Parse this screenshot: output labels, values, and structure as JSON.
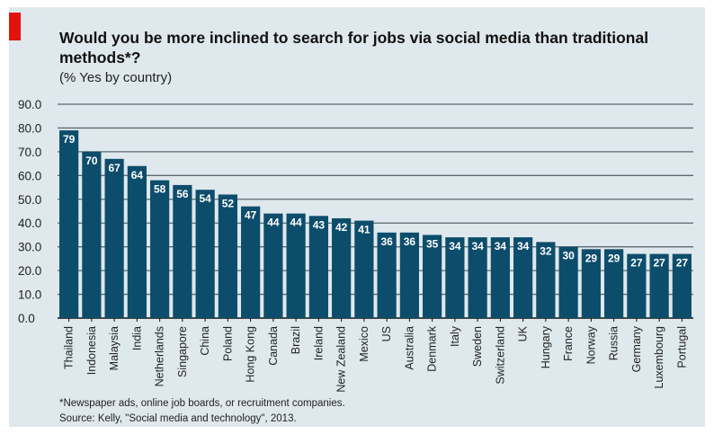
{
  "chart_data": {
    "type": "bar",
    "title": "Would you be more inclined to search for jobs via social media than traditional methods*?",
    "subtitle": "(% Yes by country)",
    "categories": [
      "Thailand",
      "Indonesia",
      "Malaysia",
      "India",
      "Netherlands",
      "Singapore",
      "China",
      "Poland",
      "Hong Kong",
      "Canada",
      "Brazil",
      "Ireland",
      "New Zealand",
      "Mexico",
      "US",
      "Australia",
      "Denmark",
      "Italy",
      "Sweden",
      "Switzerland",
      "UK",
      "Hungary",
      "France",
      "Norway",
      "Russia",
      "Germany",
      "Luxembourg",
      "Portugal"
    ],
    "values": [
      79,
      70,
      67,
      64,
      58,
      56,
      54,
      52,
      47,
      44,
      44,
      43,
      42,
      41,
      36,
      36,
      35,
      34,
      34,
      34,
      34,
      32,
      30,
      29,
      29,
      27,
      27,
      27
    ],
    "yticks": [
      "0.0",
      "10.0",
      "20.0",
      "30.0",
      "40.0",
      "50.0",
      "60.0",
      "70.0",
      "80.0",
      "90.0"
    ],
    "ylim": [
      0,
      90
    ],
    "xlabel": "",
    "ylabel": "",
    "grid": true,
    "bar_color": "#0d4d6c",
    "gridline_color": "#5a6a72",
    "accent_color": "#e3120b",
    "footnote": "*Newspaper ads, online job boards, or recruitment companies.",
    "source": "Source: Kelly, \"Social media and technology\", 2013."
  }
}
